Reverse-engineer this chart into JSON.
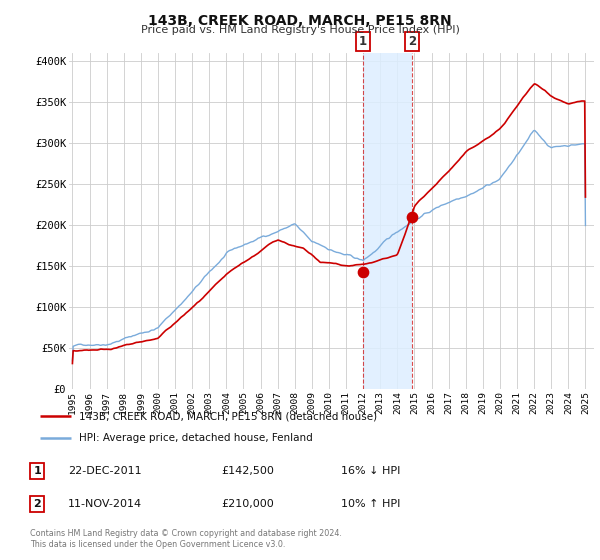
{
  "title": "143B, CREEK ROAD, MARCH, PE15 8RN",
  "subtitle": "Price paid vs. HM Land Registry's House Price Index (HPI)",
  "legend_label_red": "143B, CREEK ROAD, MARCH, PE15 8RN (detached house)",
  "legend_label_blue": "HPI: Average price, detached house, Fenland",
  "event1_date_label": "22-DEC-2011",
  "event1_price": 142500,
  "event1_price_label": "£142,500",
  "event1_hpi_label": "16% ↓ HPI",
  "event2_date_label": "11-NOV-2014",
  "event2_price": 210000,
  "event2_price_label": "£210,000",
  "event2_hpi_label": "10% ↑ HPI",
  "footnote1": "Contains HM Land Registry data © Crown copyright and database right 2024.",
  "footnote2": "This data is licensed under the Open Government Licence v3.0.",
  "red_color": "#cc0000",
  "blue_color": "#7aabdb",
  "background_color": "#ffffff",
  "grid_color": "#cccccc",
  "shade_color": "#ddeeff",
  "ylim": [
    0,
    410000
  ],
  "yticks": [
    0,
    50000,
    100000,
    150000,
    200000,
    250000,
    300000,
    350000,
    400000
  ],
  "ytick_labels": [
    "£0",
    "£50K",
    "£100K",
    "£150K",
    "£200K",
    "£250K",
    "£300K",
    "£350K",
    "£400K"
  ],
  "event1_x": 2011.97,
  "event2_x": 2014.86,
  "xlim_left": 1994.8,
  "xlim_right": 2025.5
}
